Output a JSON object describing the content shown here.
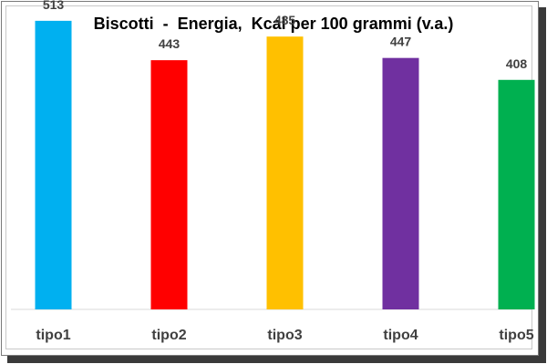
{
  "chart_data": {
    "type": "bar",
    "title": "Biscotti  -  Energia,  Kcal per 100 grammi (v.a.)",
    "categories": [
      "tipo1",
      "tipo2",
      "tipo3",
      "tipo4",
      "tipo5"
    ],
    "values": [
      513,
      443,
      485,
      447,
      408
    ],
    "colors": [
      "#00b0f0",
      "#ff0000",
      "#ffc000",
      "#7030a0",
      "#00b050"
    ],
    "ylim": [
      0,
      550
    ],
    "grid": false,
    "legend": "none",
    "data_labels": true,
    "xlabel": "",
    "ylabel": ""
  }
}
